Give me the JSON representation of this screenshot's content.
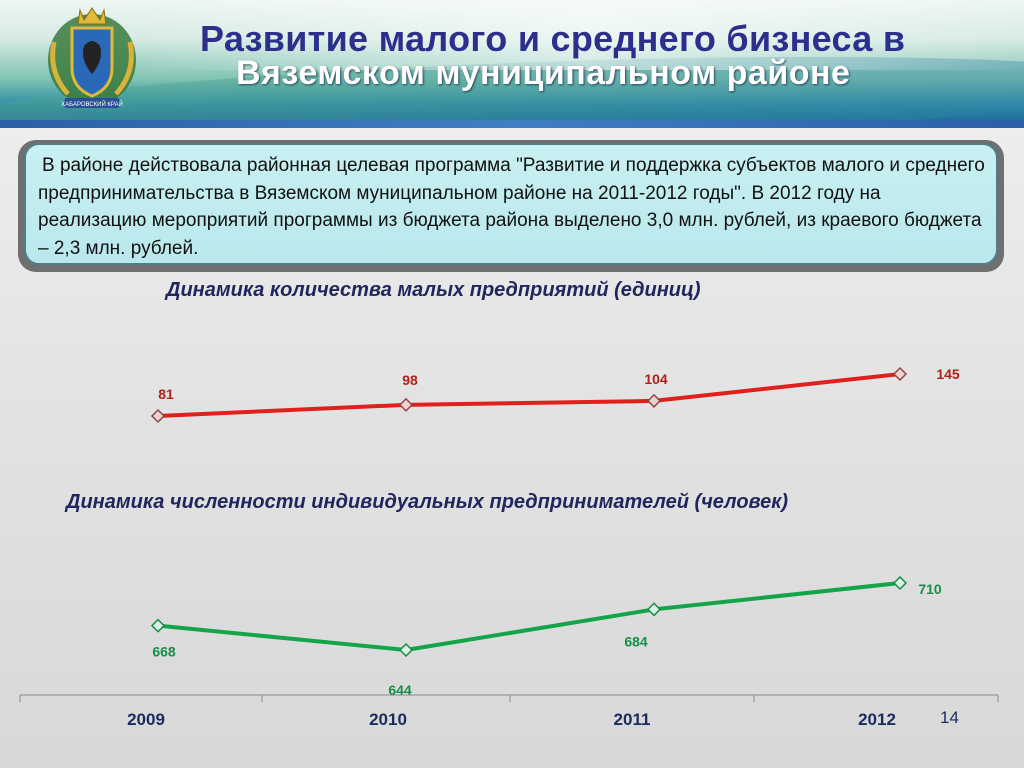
{
  "header": {
    "title_line1": "Развитие малого и среднего бизнеса в",
    "title_line2": "Вяземском муниципальном районе",
    "emblem_caption": "ХАБАРОВСКИЙ КРАЙ"
  },
  "info": {
    "text": "В районе действовала районная целевая программа \"Развитие и поддержка субъектов малого и среднего предпринимательства в Вяземском муниципальном районе на 2011-2012 годы\". В 2012 году на реализацию мероприятий программы из бюджета района выделено 3,0 млн. рублей, из краевого бюджета – 2,3 млн. рублей."
  },
  "chart_titles": {
    "enterprises": "Динамика количества малых предприятий (единиц)",
    "entrepreneurs": "Динамика численности индивидуальных предпринимателей (человек)"
  },
  "chart_data": {
    "type": "line",
    "categories": [
      "2009",
      "2010",
      "2011",
      "2012"
    ],
    "series": [
      {
        "key": "enterprises",
        "values": [
          81,
          98,
          104,
          145
        ],
        "color": "#e0201c"
      },
      {
        "key": "entrepreneurs",
        "values": [
          668,
          644,
          684,
          710
        ],
        "color": "#14a54a"
      }
    ],
    "grid": false,
    "legend": "none"
  },
  "page_number": "14"
}
